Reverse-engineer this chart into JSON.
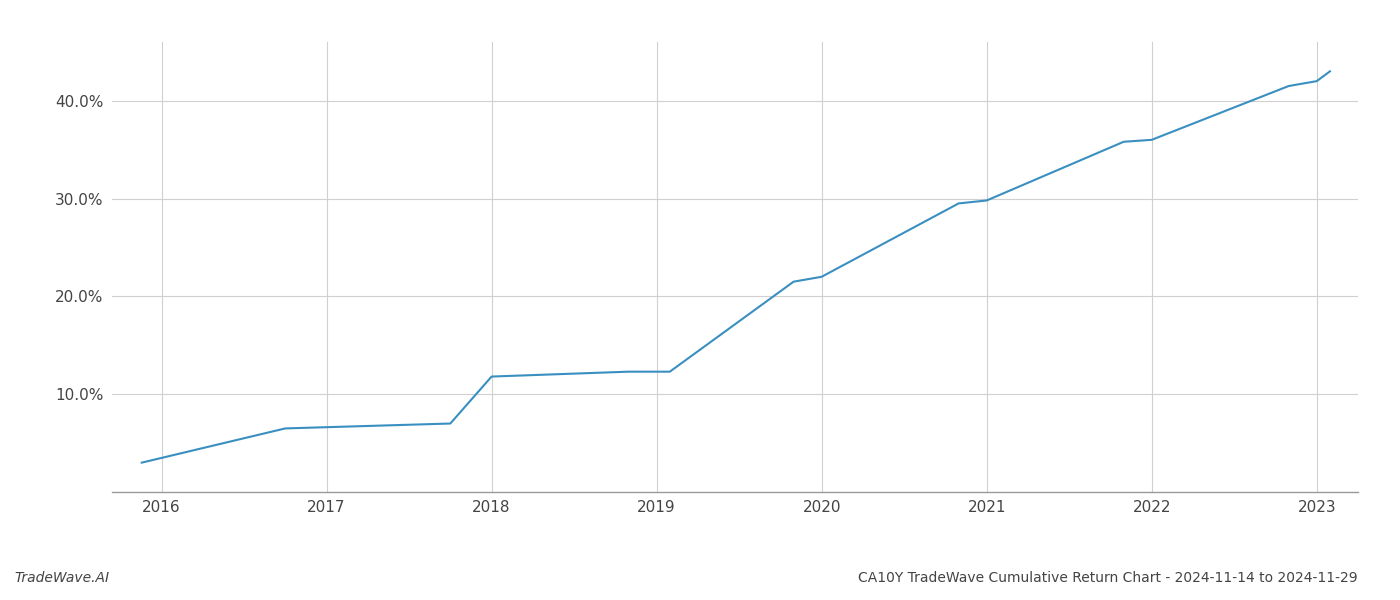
{
  "x": [
    2015.88,
    2016.75,
    2017.75,
    2018.0,
    2018.83,
    2018.92,
    2019.0,
    2019.08,
    2019.83,
    2020.0,
    2020.83,
    2021.0,
    2021.83,
    2022.0,
    2022.83,
    2023.0,
    2023.08
  ],
  "y": [
    3.0,
    6.5,
    7.0,
    11.8,
    12.3,
    12.3,
    12.3,
    12.3,
    21.5,
    22.0,
    29.5,
    29.8,
    35.8,
    36.0,
    41.5,
    42.0,
    43.0
  ],
  "line_color": "#3a8fc1",
  "line_width": 1.5,
  "background_color": "#ffffff",
  "grid_color": "#d0d0d0",
  "title": "CA10Y TradeWave Cumulative Return Chart - 2024-11-14 to 2024-11-29",
  "watermark": "TradeWave.AI",
  "yticks": [
    10.0,
    20.0,
    30.0,
    40.0
  ],
  "ytick_labels": [
    "10.0%",
    "20.0%",
    "30.0%",
    "40.0%"
  ],
  "xticks": [
    2016,
    2017,
    2018,
    2019,
    2020,
    2021,
    2022,
    2023
  ],
  "xlim": [
    2015.7,
    2023.25
  ],
  "ylim": [
    0,
    46
  ],
  "tick_fontsize": 11,
  "title_fontsize": 10,
  "watermark_fontsize": 10,
  "tick_color": "#444444",
  "spine_color": "#999999"
}
